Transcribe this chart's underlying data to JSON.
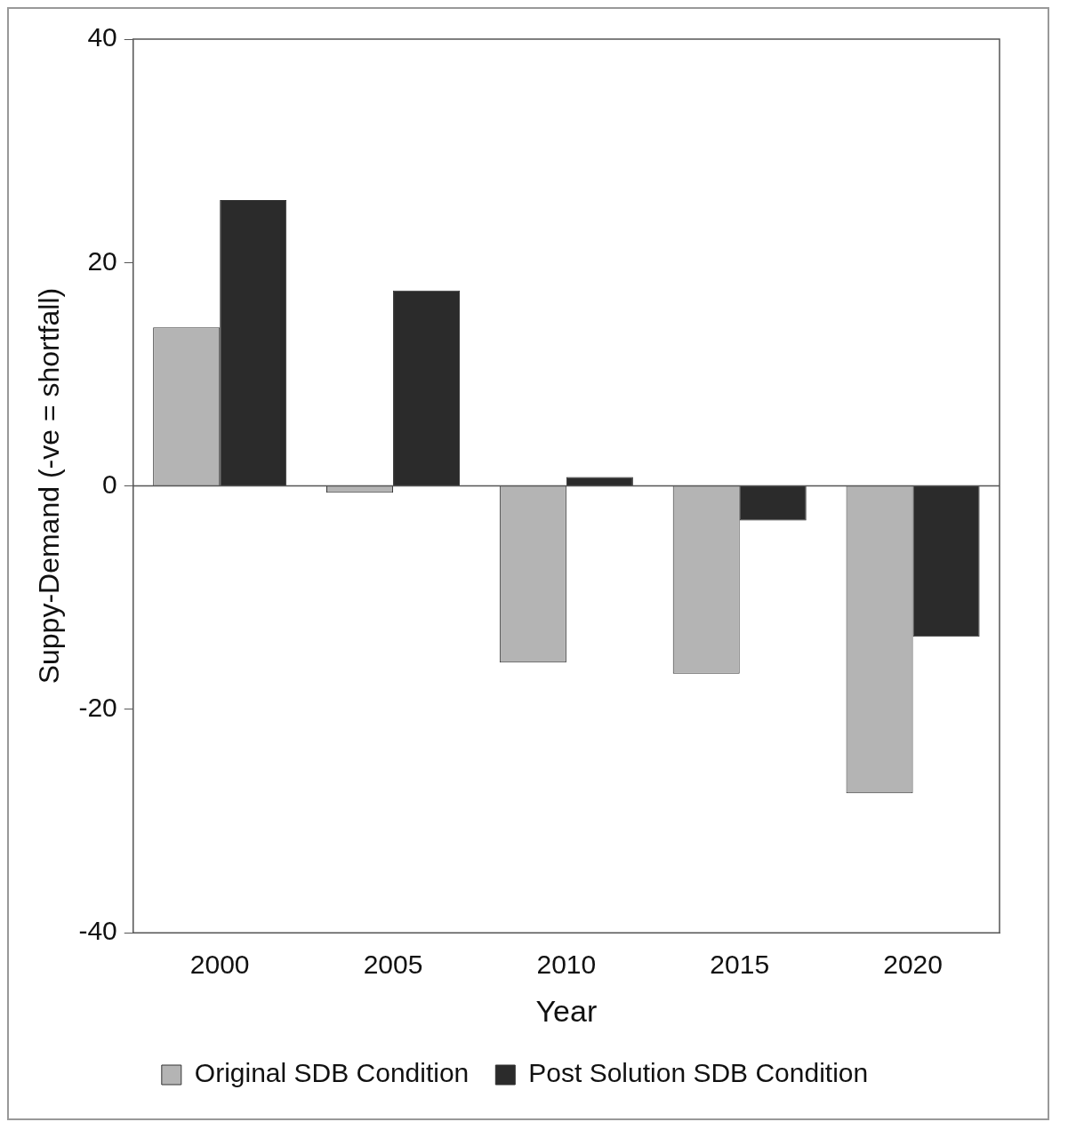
{
  "chart_data": {
    "type": "bar",
    "xlabel": "Year",
    "ylabel": "Suppy-Demand (-ve = shortfall)",
    "categories": [
      "2000",
      "2005",
      "2010",
      "2015",
      "2020"
    ],
    "series": [
      {
        "name": "Original SDB Condition",
        "color": "#b4b4b4",
        "values": [
          14.2,
          -0.6,
          -15.8,
          -16.8,
          -27.5
        ]
      },
      {
        "name": "Post Solution SDB Condition",
        "color": "#2b2b2b",
        "values": [
          25.6,
          17.5,
          0.8,
          -3.1,
          -13.5
        ]
      }
    ],
    "ylim": [
      -40,
      40
    ],
    "yticks": [
      -40,
      -20,
      0,
      20,
      40
    ],
    "ref_lines": [
      {
        "axis": "y",
        "value": 0
      }
    ],
    "legend": "bottom"
  }
}
